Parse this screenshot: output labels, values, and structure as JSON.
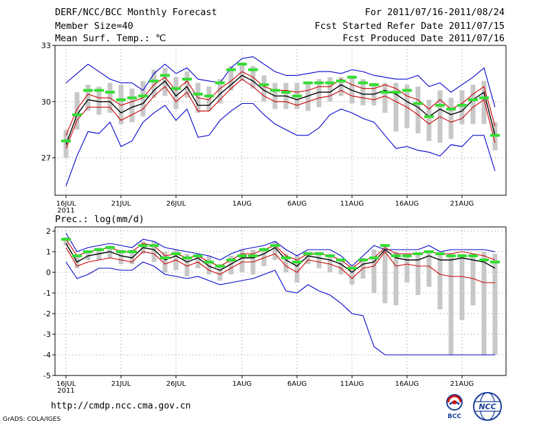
{
  "header": {
    "title": "DERF/NCC/BCC Monthly Forecast",
    "member_size": "Member Size=40",
    "variable": "Mean Surf. Temp.: ℃",
    "period": "For 2011/07/16-2011/08/24",
    "started": "Fcst Started Refer Date 2011/07/15",
    "produced": "Fcst Produced Date 2011/07/16"
  },
  "footer": {
    "url": "http://cmdp.ncc.cma.gov.cn",
    "grads": "GrADS: COLA/IGES",
    "logo_bcc": "BCC",
    "logo_ncc": "NCC"
  },
  "colors": {
    "max_min": "#0000cc",
    "spread": "#cc0000",
    "mean": "#000000",
    "ensemble": "#33dd33",
    "box": "#c8c8c8",
    "grid": "#888888"
  },
  "chart_data": [
    {
      "type": "line",
      "title": "Mean Surf. Temp.: ℃",
      "ylim": [
        25,
        33
      ],
      "yticks": [
        "33",
        "30",
        "27"
      ],
      "ytick_values": [
        33,
        30,
        27
      ],
      "x_labels": [
        {
          "day": 0,
          "text": "16JUL"
        },
        {
          "day": 0,
          "text": "2011",
          "line": 2
        },
        {
          "day": 5,
          "text": "21JUL"
        },
        {
          "day": 10,
          "text": "26JUL"
        },
        {
          "day": 16,
          "text": "1AUG"
        },
        {
          "day": 21,
          "text": "6AUG"
        },
        {
          "day": 26,
          "text": "11AUG"
        },
        {
          "day": 31,
          "text": "16AUG"
        },
        {
          "day": 36,
          "text": "21AUG"
        }
      ],
      "series": [
        {
          "name": "max",
          "values": [
            31.0,
            31.5,
            32.0,
            31.6,
            31.2,
            31.0,
            31.0,
            30.6,
            31.5,
            32.0,
            31.5,
            31.8,
            31.2,
            31.1,
            31.0,
            31.8,
            32.3,
            32.4,
            32.0,
            31.6,
            31.4,
            31.4,
            31.5,
            31.6,
            31.6,
            31.5,
            31.7,
            31.6,
            31.4,
            31.3,
            31.2,
            31.2,
            31.4,
            30.8,
            31.0,
            30.5,
            30.9,
            31.3,
            31.8,
            29.7
          ]
        },
        {
          "name": "spread_upper",
          "values": [
            28.2,
            29.6,
            30.4,
            30.2,
            30.2,
            29.8,
            30.0,
            30.2,
            30.9,
            31.3,
            30.6,
            31.1,
            30.2,
            30.1,
            30.7,
            31.1,
            31.6,
            31.3,
            30.8,
            30.6,
            30.6,
            30.5,
            30.6,
            30.8,
            30.8,
            31.2,
            30.9,
            30.7,
            30.7,
            30.9,
            30.7,
            30.3,
            30.1,
            29.6,
            30.1,
            29.6,
            29.9,
            30.4,
            30.8,
            28.7
          ]
        },
        {
          "name": "mean",
          "values": [
            27.7,
            29.3,
            30.1,
            30.0,
            30.0,
            29.4,
            29.7,
            29.9,
            30.6,
            31.1,
            30.3,
            30.8,
            29.8,
            29.8,
            30.4,
            30.9,
            31.4,
            31.1,
            30.6,
            30.3,
            30.3,
            30.1,
            30.3,
            30.5,
            30.5,
            30.9,
            30.6,
            30.4,
            30.4,
            30.6,
            30.4,
            30.0,
            29.7,
            29.2,
            29.6,
            29.3,
            29.5,
            30.1,
            30.5,
            28.2
          ]
        },
        {
          "name": "spread_lower",
          "values": [
            27.5,
            29.0,
            29.7,
            29.7,
            29.7,
            29.0,
            29.3,
            29.6,
            30.3,
            30.8,
            30.0,
            30.5,
            29.5,
            29.5,
            30.1,
            30.7,
            31.2,
            30.8,
            30.3,
            30.0,
            30.0,
            29.8,
            30.0,
            30.2,
            30.3,
            30.6,
            30.3,
            30.2,
            30.1,
            30.3,
            30.0,
            29.7,
            29.3,
            28.8,
            29.2,
            28.9,
            29.1,
            29.7,
            30.1,
            27.8
          ]
        },
        {
          "name": "min",
          "values": [
            25.5,
            27.1,
            28.4,
            28.3,
            28.9,
            27.6,
            27.9,
            28.9,
            29.4,
            29.8,
            29.0,
            29.6,
            28.1,
            28.2,
            29.0,
            29.5,
            29.9,
            29.9,
            29.3,
            28.8,
            28.5,
            28.2,
            28.2,
            28.6,
            29.3,
            29.6,
            29.4,
            29.1,
            28.9,
            28.2,
            27.5,
            27.6,
            27.4,
            27.3,
            27.1,
            27.7,
            27.6,
            28.2,
            28.2,
            26.3
          ]
        },
        {
          "name": "box_high",
          "values": [
            28.5,
            30.5,
            30.9,
            30.8,
            31.0,
            30.9,
            30.7,
            31.1,
            31.7,
            31.8,
            31.3,
            31.6,
            31.0,
            30.8,
            31.2,
            31.9,
            32.1,
            31.9,
            31.4,
            31.0,
            31.0,
            31.0,
            31.0,
            31.2,
            31.3,
            31.3,
            31.4,
            31.2,
            31.0,
            31.0,
            31.0,
            30.9,
            30.8,
            30.1,
            30.6,
            30.2,
            30.6,
            30.9,
            31.1,
            28.9
          ]
        },
        {
          "name": "box_low",
          "values": [
            27.0,
            28.5,
            29.5,
            29.3,
            29.4,
            28.8,
            28.9,
            29.2,
            30.2,
            30.3,
            29.6,
            30.2,
            29.4,
            29.5,
            29.9,
            30.6,
            31.1,
            30.7,
            30.0,
            29.6,
            29.6,
            29.6,
            29.5,
            29.7,
            30.0,
            30.3,
            29.9,
            29.8,
            29.8,
            29.4,
            28.4,
            28.6,
            28.3,
            27.9,
            27.8,
            28.0,
            28.8,
            28.8,
            28.8,
            27.4
          ]
        },
        {
          "name": "ensemble",
          "values": [
            27.9,
            29.3,
            30.6,
            30.6,
            30.5,
            30.1,
            30.2,
            30.3,
            31.1,
            31.4,
            30.7,
            31.2,
            30.4,
            30.3,
            31.0,
            31.7,
            32.0,
            31.7,
            30.9,
            30.6,
            30.5,
            30.3,
            31.0,
            31.0,
            31.0,
            31.1,
            31.3,
            31.0,
            30.9,
            30.5,
            30.5,
            30.6,
            29.9,
            29.2,
            29.8,
            29.6,
            29.8,
            30.1,
            30.2,
            28.2
          ]
        }
      ]
    },
    {
      "type": "line",
      "title": "Prec.: log(mm/d)",
      "ylim": [
        -5,
        2.2
      ],
      "yticks": [
        "2",
        "1",
        "0",
        "-1",
        "-2",
        "-3",
        "-4",
        "-5"
      ],
      "ytick_values": [
        2,
        1,
        0,
        -1,
        -2,
        -3,
        -4,
        -5
      ],
      "x_labels": [
        {
          "day": 0,
          "text": "16JUL"
        },
        {
          "day": 0,
          "text": "2011",
          "line": 2
        },
        {
          "day": 5,
          "text": "21JUL"
        },
        {
          "day": 10,
          "text": "26JUL"
        },
        {
          "day": 16,
          "text": "1AUG"
        },
        {
          "day": 21,
          "text": "6AUG"
        },
        {
          "day": 26,
          "text": "11AUG"
        },
        {
          "day": 31,
          "text": "16AUG"
        },
        {
          "day": 36,
          "text": "21AUG"
        }
      ],
      "series": [
        {
          "name": "max",
          "values": [
            1.9,
            1.0,
            1.2,
            1.3,
            1.4,
            1.3,
            1.2,
            1.6,
            1.5,
            1.2,
            1.1,
            1.0,
            0.9,
            0.8,
            0.6,
            0.9,
            1.1,
            1.2,
            1.3,
            1.5,
            1.1,
            0.8,
            1.1,
            1.1,
            1.1,
            0.8,
            0.3,
            0.8,
            1.3,
            1.1,
            1.1,
            1.1,
            1.1,
            1.3,
            1.0,
            1.1,
            1.1,
            1.1,
            1.1,
            1.0
          ]
        },
        {
          "name": "spread_upper",
          "values": [
            1.6,
            0.8,
            1.0,
            1.1,
            1.2,
            1.0,
            1.0,
            1.4,
            1.3,
            0.8,
            0.9,
            0.7,
            0.8,
            0.5,
            0.3,
            0.6,
            0.9,
            0.9,
            1.1,
            1.3,
            0.8,
            0.6,
            0.9,
            0.9,
            0.8,
            0.6,
            0.2,
            0.6,
            0.7,
            1.2,
            0.9,
            0.9,
            0.9,
            1.0,
            0.9,
            0.9,
            1.0,
            0.9,
            0.8,
            0.6
          ]
        },
        {
          "name": "mean",
          "values": [
            1.4,
            0.5,
            0.8,
            0.9,
            1.0,
            0.8,
            0.7,
            1.2,
            1.1,
            0.6,
            0.8,
            0.5,
            0.7,
            0.3,
            0.1,
            0.4,
            0.7,
            0.7,
            0.9,
            1.2,
            0.6,
            0.3,
            0.8,
            0.7,
            0.6,
            0.4,
            0.0,
            0.4,
            0.5,
            1.1,
            0.7,
            0.6,
            0.6,
            0.8,
            0.6,
            0.6,
            0.7,
            0.6,
            0.5,
            0.2
          ]
        },
        {
          "name": "spread_lower",
          "values": [
            1.2,
            0.3,
            0.5,
            0.6,
            0.7,
            0.6,
            0.5,
            1.0,
            0.9,
            0.4,
            0.6,
            0.3,
            0.5,
            0.1,
            -0.1,
            0.2,
            0.5,
            0.5,
            0.7,
            0.9,
            0.3,
            0.0,
            0.6,
            0.5,
            0.4,
            0.2,
            -0.3,
            0.2,
            0.3,
            1.0,
            0.3,
            0.4,
            0.3,
            0.3,
            -0.1,
            -0.2,
            -0.2,
            -0.3,
            -0.5,
            -0.5
          ]
        },
        {
          "name": "min",
          "values": [
            0.5,
            -0.3,
            -0.1,
            0.2,
            0.2,
            0.1,
            0.1,
            0.5,
            0.3,
            -0.1,
            -0.2,
            -0.3,
            -0.2,
            -0.4,
            -0.6,
            -0.5,
            -0.4,
            -0.3,
            -0.1,
            0.1,
            -0.9,
            -1.0,
            -0.6,
            -0.9,
            -1.1,
            -1.5,
            -2.0,
            -2.1,
            -3.6,
            -4.0,
            -4.0,
            -4.0,
            -4.0,
            -4.0,
            -4.0,
            -4.0,
            -4.0,
            -4.0,
            -4.0,
            -4.0
          ]
        },
        {
          "name": "box_high",
          "values": [
            1.7,
            0.8,
            1.0,
            1.2,
            1.3,
            1.1,
            1.1,
            1.5,
            1.5,
            1.0,
            1.1,
            0.9,
            0.9,
            0.8,
            0.4,
            0.8,
            1.1,
            1.1,
            1.2,
            1.5,
            0.9,
            0.8,
            1.0,
            1.0,
            0.9,
            0.6,
            0.2,
            0.7,
            1.1,
            1.3,
            1.0,
            0.9,
            0.9,
            1.0,
            0.9,
            0.9,
            0.9,
            0.9,
            1.0,
            0.9
          ]
        },
        {
          "name": "box_low",
          "values": [
            1.3,
            0.2,
            0.6,
            0.6,
            0.7,
            0.4,
            0.4,
            0.9,
            0.5,
            0.0,
            0.1,
            -0.2,
            0.2,
            -0.1,
            -0.4,
            -0.1,
            0.0,
            -0.1,
            0.3,
            0.6,
            0.0,
            -0.5,
            0.4,
            0.2,
            0.0,
            -0.1,
            -0.6,
            -0.3,
            -1.0,
            -1.5,
            -1.6,
            -0.5,
            -1.1,
            -0.7,
            -1.8,
            -4.0,
            -2.3,
            -1.6,
            -4.0,
            -4.0
          ]
        },
        {
          "name": "ensemble",
          "values": [
            1.6,
            0.8,
            1.0,
            1.1,
            1.2,
            1.0,
            1.0,
            1.3,
            1.3,
            0.7,
            0.9,
            0.7,
            0.8,
            0.5,
            0.3,
            0.6,
            0.8,
            0.8,
            1.1,
            1.3,
            0.7,
            0.5,
            0.9,
            0.9,
            0.8,
            0.6,
            0.2,
            0.6,
            0.7,
            1.3,
            0.8,
            0.8,
            0.9,
            1.0,
            0.9,
            0.8,
            0.8,
            0.8,
            0.6,
            0.5
          ]
        }
      ]
    }
  ]
}
